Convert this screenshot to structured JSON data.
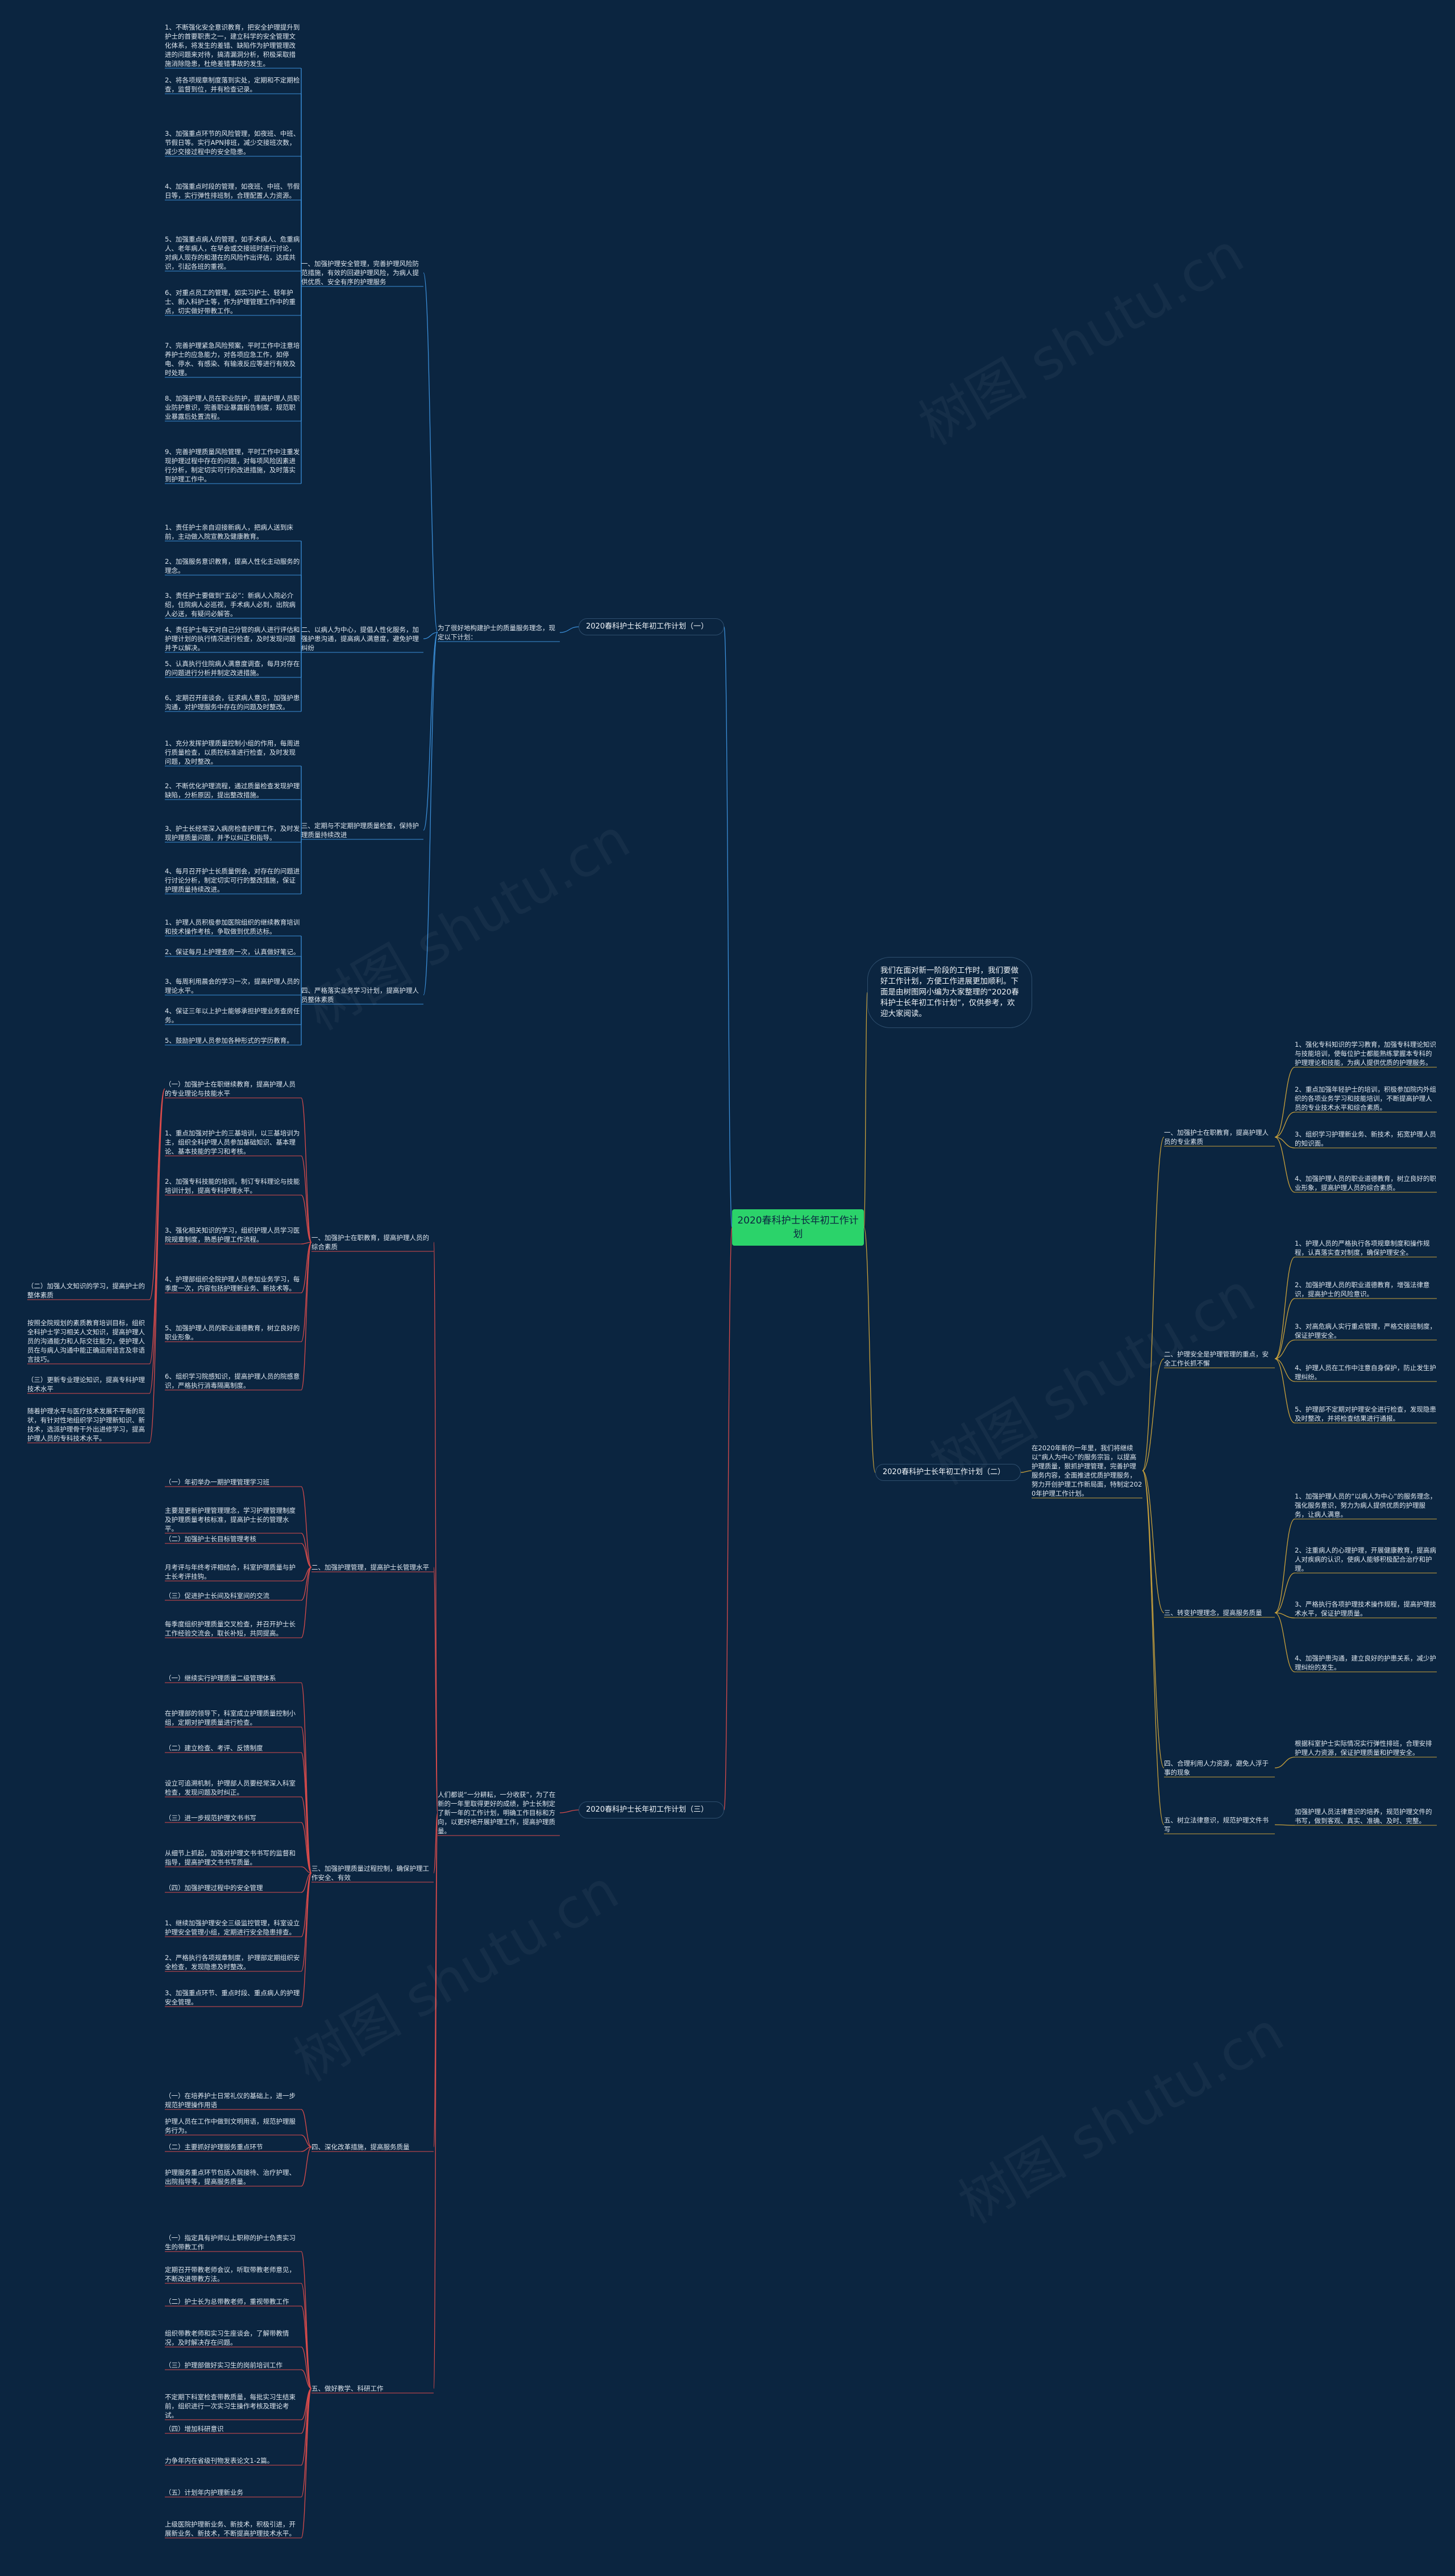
{
  "root": "2020春科护士长年初工作计划",
  "intro": "我们在面对新一阶段的工作时，我们要做好工作计划，方便工作进展更加顺利。下面是由树图网小编为大家整理的“2020春科护士长年初工作计划”，仅供参考，欢迎大家阅读。",
  "watermark": "树图 shutu.cn",
  "plan1": {
    "title": "2020春科护士长年初工作计划（一）",
    "summary": "为了很好地构建护士的质量服务理念，现定以下计划：",
    "sections": [
      {
        "title": "一、加强护理安全管理，完善护理风险防范措施，有效的回避护理风险，为病人提供优质、安全有序的护理服务",
        "items": [
          "1、不断强化安全意识教育，把安全护理提升到护士的首要职责之一，建立科学的安全管理文化体系，将发生的差错、缺陷作为护理管理改进的问题来对待，搞清漏洞分析，积极采取措施消除隐患，杜绝差错事故的发生。",
          "2、将各项规章制度落到实处，定期和不定期检查，监督到位，并有检查记录。",
          "3、加强重点环节的风险管理，如夜班、中班、节假日等。实行APN排班，减少交接班次数，减少交接过程中的安全隐患。",
          "4、加强重点时段的管理，如夜班、中班、节假日等，实行弹性排班制，合理配置人力资源。",
          "5、加强重点病人的管理，如手术病人、危重病人、老年病人，在早会或交接班时进行讨论，对病人现存的和潜在的风险作出评估，达成共识，引起各班的重视。",
          "6、对重点员工的管理，如实习护士、轻年护士、新入科护士等，作为护理管理工作中的重点，切实做好带教工作。",
          "7、完善护理紧急风险预案，平时工作中注意培养护士的应急能力，对各项应急工作，如停电、停水、有感染、有输液反应等进行有效及时处理。",
          "8、加强护理人员在职业防护，提高护理人员职业防护意识，完善职业暴露报告制度，规范职业暴露后处置流程。",
          "9、完善护理质量风险管理，平时工作中注重发现护理过程中存在的问题，对每项风险因素进行分析，制定切实可行的改进措施，及时落实到护理工作中。"
        ]
      },
      {
        "title": "二、以病人为中心，提倡人性化服务，加强护患沟通，提高病人满意度，避免护理纠纷",
        "items": [
          "1、责任护士亲自迎接新病人，把病人送到床前，主动做入院宣教及健康教育。",
          "2、加强服务意识教育，提高人性化主动服务的理念。",
          "3、责任护士要做到“五必”：新病人入院必介绍，住院病人必巡视，手术病人必到，出院病人必送，有疑问必解答。",
          "4、责任护士每天对自己分管的病人进行评估和护理计划的执行情况进行检查，及时发现问题并予以解决。",
          "5、认真执行住院病人满意度调查，每月对存在的问题进行分析并制定改进措施。",
          "6、定期召开座谈会，征求病人意见，加强护患沟通，对护理服务中存在的问题及时整改。"
        ]
      },
      {
        "title": "三、定期与不定期护理质量检查，保持护理质量持续改进",
        "items": [
          "1、充分发挥护理质量控制小组的作用，每周进行质量检查，以质控标准进行检查，及时发现问题，及时整改。",
          "2、不断优化护理流程，通过质量检查发现护理缺陷，分析原因，提出整改措施。",
          "3、护士长经常深入病房检查护理工作，及时发现护理质量问题，并予以纠正和指导。",
          "4、每月召开护士长质量例会，对存在的问题进行讨论分析，制定切实可行的整改措施，保证护理质量持续改进。"
        ]
      },
      {
        "title": "四、严格落实业务学习计划，提高护理人员整体素质",
        "items": [
          "1、护理人员积极参加医院组织的继续教育培训和技术操作考核，争取做到优质达标。",
          "2、保证每月上护理查房一次，认真做好笔记。",
          "3、每周利用晨会的学习一次，提高护理人员的理论水平。",
          "4、保证三年以上护士能够承担护理业务查房任务。",
          "5、鼓励护理人员参加各种形式的学历教育。"
        ]
      }
    ]
  },
  "plan2": {
    "title": "2020春科护士长年初工作计划（二）",
    "summary": "在2020年新的一年里，我们将继续以“病人为中心”的服务宗旨，以提高护理质量，狠抓护理管理，完善护理服务内容，全面推进优质护理服务，努力开创护理工作新局面，特制定2020年护理工作计划。",
    "sections": [
      {
        "title": "一、加强护士在职教育，提高护理人员的专业素质",
        "items": [
          "1、强化专科知识的学习教育，加强专科理论知识与技能培训，使每位护士都能熟练掌握本专科的护理理论和技能，为病人提供优质的护理服务。",
          "2、重点加强年轻护士的培训，积极参加院内外组织的各项业务学习和技能培训，不断提高护理人员的专业技术水平和综合素质。",
          "3、组织学习护理新业务、新技术，拓宽护理人员的知识面。",
          "4、加强护理人员的职业道德教育，树立良好的职业形象，提高护理人员的综合素质。"
        ]
      },
      {
        "title": "二、护理安全是护理管理的重点，安全工作长抓不懈",
        "items": [
          "1、护理人员的严格执行各项规章制度和操作规程，认真落实查对制度，确保护理安全。",
          "2、加强护理人员的职业道德教育，增强法律意识，提高护士的风险意识。",
          "3、对高危病人实行重点管理，严格交接班制度，保证护理安全。",
          "4、护理人员在工作中注意自身保护，防止发生护理纠纷。",
          "5、护理部不定期对护理安全进行检查，发现隐患及时整改，并将检查结果进行通报。"
        ]
      },
      {
        "title": "三、转变护理理念，提高服务质量",
        "items": [
          "1、加强护理人员的“以病人为中心”的服务理念，强化服务意识，努力为病人提供优质的护理服务，让病人满意。",
          "2、注重病人的心理护理，开展健康教育，提高病人对疾病的认识，使病人能够积极配合治疗和护理。",
          "3、严格执行各项护理技术操作规程，提高护理技术水平，保证护理质量。",
          "4、加强护患沟通，建立良好的护患关系，减少护理纠纷的发生。"
        ]
      },
      {
        "title": "四、合理利用人力资源，避免人浮于事的现象",
        "items": [
          "根据科室护士实际情况实行弹性排班，合理安排护理人力资源，保证护理质量和护理安全。"
        ]
      },
      {
        "title": "五、树立法律意识，规范护理文件书写",
        "items": [
          "加强护理人员法律意识的培养，规范护理文件的书写，做到客观、真实、准确、及时、完整。"
        ]
      }
    ]
  },
  "plan3": {
    "title": "2020春科护士长年初工作计划（三）",
    "summary": "人们都说“一分耕耘，一分收获”，为了在新的一年里取得更好的成绩，护士长制定了新一年的工作计划，明确工作目标和方向，以更好地开展护理工作，提高护理质量。",
    "sections": [
      {
        "title": "一、加强护士在职教育，提高护理人员的综合素质",
        "side": [
          "（二）加强人文知识的学习，提高护士的整体素质",
          "按照全院规划的素质教育培训目标，组织全科护士学习相关人文知识，提高护理人员的沟通能力和人际交往能力，使护理人员在与病人沟通中能正确运用语言及非语言技巧。",
          "（三）更新专业理论知识，提高专科护理技术水平",
          "随着护理水平与医疗技术发展不平衡的现状，有针对性地组织学习护理新知识、新技术，选派护理骨干外出进修学习，提高护理人员的专科技术水平。"
        ],
        "items": [
          "（一）加强护士在职继续教育，提高护理人员的专业理论与技能水平",
          "1、重点加强对护士的三基培训，以三基培训为主，组织全科护理人员参加基础知识、基本理论、基本技能的学习和考核。",
          "2、加强专科技能的培训，制订专科理论与技能培训计划，提高专科护理水平。",
          "3、强化相关知识的学习，组织护理人员学习医院规章制度，熟悉护理工作流程。",
          "4、护理部组织全院护理人员参加业务学习，每季度一次，内容包括护理新业务、新技术等。",
          "5、加强护理人员的职业道德教育，树立良好的职业形象。",
          "6、组织学习院感知识，提高护理人员的院感意识，严格执行消毒隔离制度。"
        ]
      },
      {
        "title": "二、加强护理管理，提高护士长管理水平",
        "items": [
          "（一）年初举办一期护理管理学习班",
          "主要是更新护理管理理念，学习护理管理制度及护理质量考核标准，提高护士长的管理水平。",
          "（二）加强护士长目标管理考核",
          "月考评与年终考评相结合，科室护理质量与护士长考评挂钩。",
          "（三）促进护士长间及科室间的交流",
          "每季度组织护理质量交叉检查，并召开护士长工作经验交流会，取长补短，共同提高。"
        ]
      },
      {
        "title": "三、加强护理质量过程控制，确保护理工作安全、有效",
        "items": [
          "（一）继续实行护理质量二级管理体系",
          "在护理部的领导下，科室成立护理质量控制小组，定期对护理质量进行检查。",
          "（二）建立检查、考评、反馈制度",
          "设立可追溯机制，护理部人员要经常深入科室检查，发现问题及时纠正。",
          "（三）进一步规范护理文书书写",
          "从细节上抓起，加强对护理文书书写的监督和指导，提高护理文书书写质量。",
          "（四）加强护理过程中的安全管理",
          "1、继续加强护理安全三级监控管理，科室设立护理安全管理小组，定期进行安全隐患排查。",
          "2、严格执行各项规章制度，护理部定期组织安全检查，发现隐患及时整改。",
          "3、加强重点环节、重点时段、重点病人的护理安全管理。"
        ]
      },
      {
        "title": "四、深化改革措施，提高服务质量",
        "items": [
          "（一）在培养护士日常礼仪的基础上，进一步规范护理操作用语",
          "护理人员在工作中做到文明用语，规范护理服务行为。",
          "（二）主要抓好护理服务重点环节",
          "护理服务重点环节包括入院接待、治疗护理、出院指导等，提高服务质量。"
        ]
      },
      {
        "title": "五、做好教学、科研工作",
        "items": [
          "（一）指定具有护师以上职称的护士负责实习生的带教工作",
          "定期召开带教老师会议，听取带教老师意见，不断改进带教方法。",
          "（二）护士长为总带教老师，重视带教工作",
          "组织带教老师和实习生座谈会，了解带教情况，及时解决存在问题。",
          "（三）护理部做好实习生的岗前培训工作",
          "不定期下科室检查带教质量，每批实习生结束前，组织进行一次实习生操作考核及理论考试。",
          "（四）增加科研意识",
          "力争年内在省级刊物发表论文1-2篇。",
          "（五）计划年内护理新业务",
          "上级医院护理新业务、新技术，积极引进，开展新业务、新技术，不断提高护理技术水平。"
        ]
      }
    ]
  }
}
